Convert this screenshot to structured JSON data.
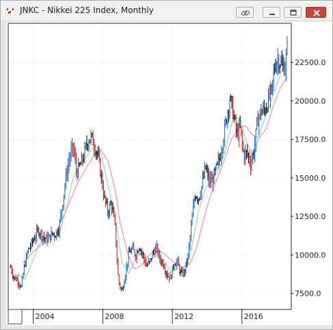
{
  "window": {
    "title": "JNKC - Nikkei 225 Index, Monthly",
    "icons": [
      "app-chart-icon",
      "link-icon",
      "minimize-icon",
      "restore-icon",
      "close-icon"
    ]
  },
  "colors": {
    "up_bar": "#1f6fd0",
    "down_bar": "#d21f1f",
    "neutral_bar": "#111111",
    "ma_short": "#9fd6a8",
    "ma_long": "#f08ac8",
    "grid": "#dddddd"
  },
  "chart_data": {
    "type": "ohlc",
    "title": "",
    "xlabel": "",
    "ylabel": "",
    "ylim": [
      6500,
      25000
    ],
    "xlim": [
      2002.6,
      2018.8
    ],
    "x_ticks": [
      2004,
      2008,
      2012,
      2016
    ],
    "x_tick_labels": [
      "2004",
      "2008",
      "2012",
      "2016"
    ],
    "y_ticks": [
      7500,
      10000,
      12500,
      15000,
      17500,
      20000,
      22500
    ],
    "y_tick_labels": [
      "7500.0",
      "10000.0",
      "12500.0",
      "15000.0",
      "17500.0",
      "20000.0",
      "22500.0"
    ],
    "grid": true,
    "series": [
      {
        "name": "",
        "kind": "monthly-price-path",
        "points": [
          [
            2002.7,
            9200
          ],
          [
            2002.9,
            8500
          ],
          [
            2003.1,
            8400
          ],
          [
            2003.3,
            7900
          ],
          [
            2003.5,
            9300
          ],
          [
            2003.7,
            10300
          ],
          [
            2003.9,
            10700
          ],
          [
            2004.1,
            11200
          ],
          [
            2004.3,
            11600
          ],
          [
            2004.5,
            11300
          ],
          [
            2004.7,
            11000
          ],
          [
            2004.9,
            11100
          ],
          [
            2005.1,
            11400
          ],
          [
            2005.3,
            11300
          ],
          [
            2005.5,
            11900
          ],
          [
            2005.7,
            13500
          ],
          [
            2005.9,
            15200
          ],
          [
            2006.1,
            16400
          ],
          [
            2006.3,
            17000
          ],
          [
            2006.5,
            15300
          ],
          [
            2006.7,
            15800
          ],
          [
            2006.9,
            16400
          ],
          [
            2007.1,
            17300
          ],
          [
            2007.3,
            17700
          ],
          [
            2007.5,
            17200
          ],
          [
            2007.7,
            16500
          ],
          [
            2007.9,
            15200
          ],
          [
            2008.1,
            13600
          ],
          [
            2008.3,
            12800
          ],
          [
            2008.5,
            13400
          ],
          [
            2008.7,
            11800
          ],
          [
            2008.9,
            8300
          ],
          [
            2009.1,
            7600
          ],
          [
            2009.3,
            8800
          ],
          [
            2009.5,
            10100
          ],
          [
            2009.7,
            10400
          ],
          [
            2009.9,
            10000
          ],
          [
            2010.1,
            10600
          ],
          [
            2010.3,
            10000
          ],
          [
            2010.5,
            9300
          ],
          [
            2010.7,
            9500
          ],
          [
            2010.9,
            10200
          ],
          [
            2011.1,
            10400
          ],
          [
            2011.3,
            9700
          ],
          [
            2011.5,
            9400
          ],
          [
            2011.7,
            8700
          ],
          [
            2011.9,
            8500
          ],
          [
            2012.1,
            9500
          ],
          [
            2012.3,
            9500
          ],
          [
            2012.5,
            8700
          ],
          [
            2012.7,
            8900
          ],
          [
            2012.9,
            9900
          ],
          [
            2013.1,
            12000
          ],
          [
            2013.3,
            14000
          ],
          [
            2013.5,
            13700
          ],
          [
            2013.7,
            14500
          ],
          [
            2013.9,
            15700
          ],
          [
            2014.1,
            14800
          ],
          [
            2014.3,
            14800
          ],
          [
            2014.5,
            15500
          ],
          [
            2014.7,
            16200
          ],
          [
            2014.9,
            17400
          ],
          [
            2015.1,
            18800
          ],
          [
            2015.3,
            20200
          ],
          [
            2015.5,
            19200
          ],
          [
            2015.7,
            17800
          ],
          [
            2015.9,
            18200
          ],
          [
            2016.1,
            16500
          ],
          [
            2016.3,
            16600
          ],
          [
            2016.5,
            16000
          ],
          [
            2016.7,
            16800
          ],
          [
            2016.9,
            18800
          ],
          [
            2017.1,
            19300
          ],
          [
            2017.3,
            19400
          ],
          [
            2017.5,
            20000
          ],
          [
            2017.7,
            20600
          ],
          [
            2017.9,
            22400
          ],
          [
            2018.1,
            22800
          ],
          [
            2018.3,
            22200
          ],
          [
            2018.5,
            22300
          ],
          [
            2018.6,
            23400
          ]
        ]
      },
      {
        "name": "",
        "kind": "moving-average-short",
        "points": [
          [
            2003.1,
            8800
          ],
          [
            2003.5,
            8400
          ],
          [
            2003.9,
            9400
          ],
          [
            2004.3,
            10600
          ],
          [
            2004.7,
            11100
          ],
          [
            2005.1,
            11200
          ],
          [
            2005.5,
            11400
          ],
          [
            2005.9,
            13000
          ],
          [
            2006.3,
            15000
          ],
          [
            2006.7,
            16000
          ],
          [
            2007.1,
            16400
          ],
          [
            2007.5,
            17100
          ],
          [
            2007.9,
            16600
          ],
          [
            2008.3,
            14500
          ],
          [
            2008.7,
            12600
          ],
          [
            2009.1,
            9500
          ],
          [
            2009.5,
            8800
          ],
          [
            2009.9,
            9800
          ],
          [
            2010.3,
            10200
          ],
          [
            2010.7,
            9700
          ],
          [
            2011.1,
            9900
          ],
          [
            2011.5,
            9700
          ],
          [
            2011.9,
            8900
          ],
          [
            2012.3,
            9100
          ],
          [
            2012.7,
            9200
          ],
          [
            2013.1,
            10400
          ],
          [
            2013.5,
            12800
          ],
          [
            2013.9,
            14300
          ],
          [
            2014.3,
            15000
          ],
          [
            2014.7,
            15500
          ],
          [
            2015.1,
            17000
          ],
          [
            2015.5,
            18900
          ],
          [
            2015.9,
            18900
          ],
          [
            2016.3,
            17200
          ],
          [
            2016.7,
            16500
          ],
          [
            2017.1,
            18200
          ],
          [
            2017.5,
            19400
          ],
          [
            2017.9,
            20700
          ],
          [
            2018.3,
            22000
          ],
          [
            2018.6,
            22700
          ]
        ]
      },
      {
        "name": "",
        "kind": "moving-average-long",
        "points": [
          [
            2003.4,
            9500
          ],
          [
            2003.9,
            10100
          ],
          [
            2004.4,
            10600
          ],
          [
            2004.9,
            11000
          ],
          [
            2005.4,
            11700
          ],
          [
            2005.9,
            12900
          ],
          [
            2006.4,
            14300
          ],
          [
            2006.9,
            15400
          ],
          [
            2007.4,
            16300
          ],
          [
            2007.9,
            16800
          ],
          [
            2008.3,
            16100
          ],
          [
            2008.7,
            14300
          ],
          [
            2009.0,
            12100
          ],
          [
            2009.4,
            10200
          ],
          [
            2009.8,
            9100
          ],
          [
            2010.2,
            9300
          ],
          [
            2010.6,
            9900
          ],
          [
            2011.0,
            10300
          ],
          [
            2011.4,
            10200
          ],
          [
            2011.8,
            9800
          ],
          [
            2012.2,
            9400
          ],
          [
            2012.6,
            9200
          ],
          [
            2013.0,
            9400
          ],
          [
            2013.4,
            10500
          ],
          [
            2013.8,
            12300
          ],
          [
            2014.2,
            13900
          ],
          [
            2014.6,
            15000
          ],
          [
            2015.0,
            16200
          ],
          [
            2015.4,
            17500
          ],
          [
            2015.8,
            18200
          ],
          [
            2016.2,
            18400
          ],
          [
            2016.6,
            17800
          ],
          [
            2017.0,
            17600
          ],
          [
            2017.4,
            18200
          ],
          [
            2017.8,
            19700
          ],
          [
            2018.2,
            20800
          ],
          [
            2018.6,
            21600
          ]
        ]
      }
    ]
  }
}
